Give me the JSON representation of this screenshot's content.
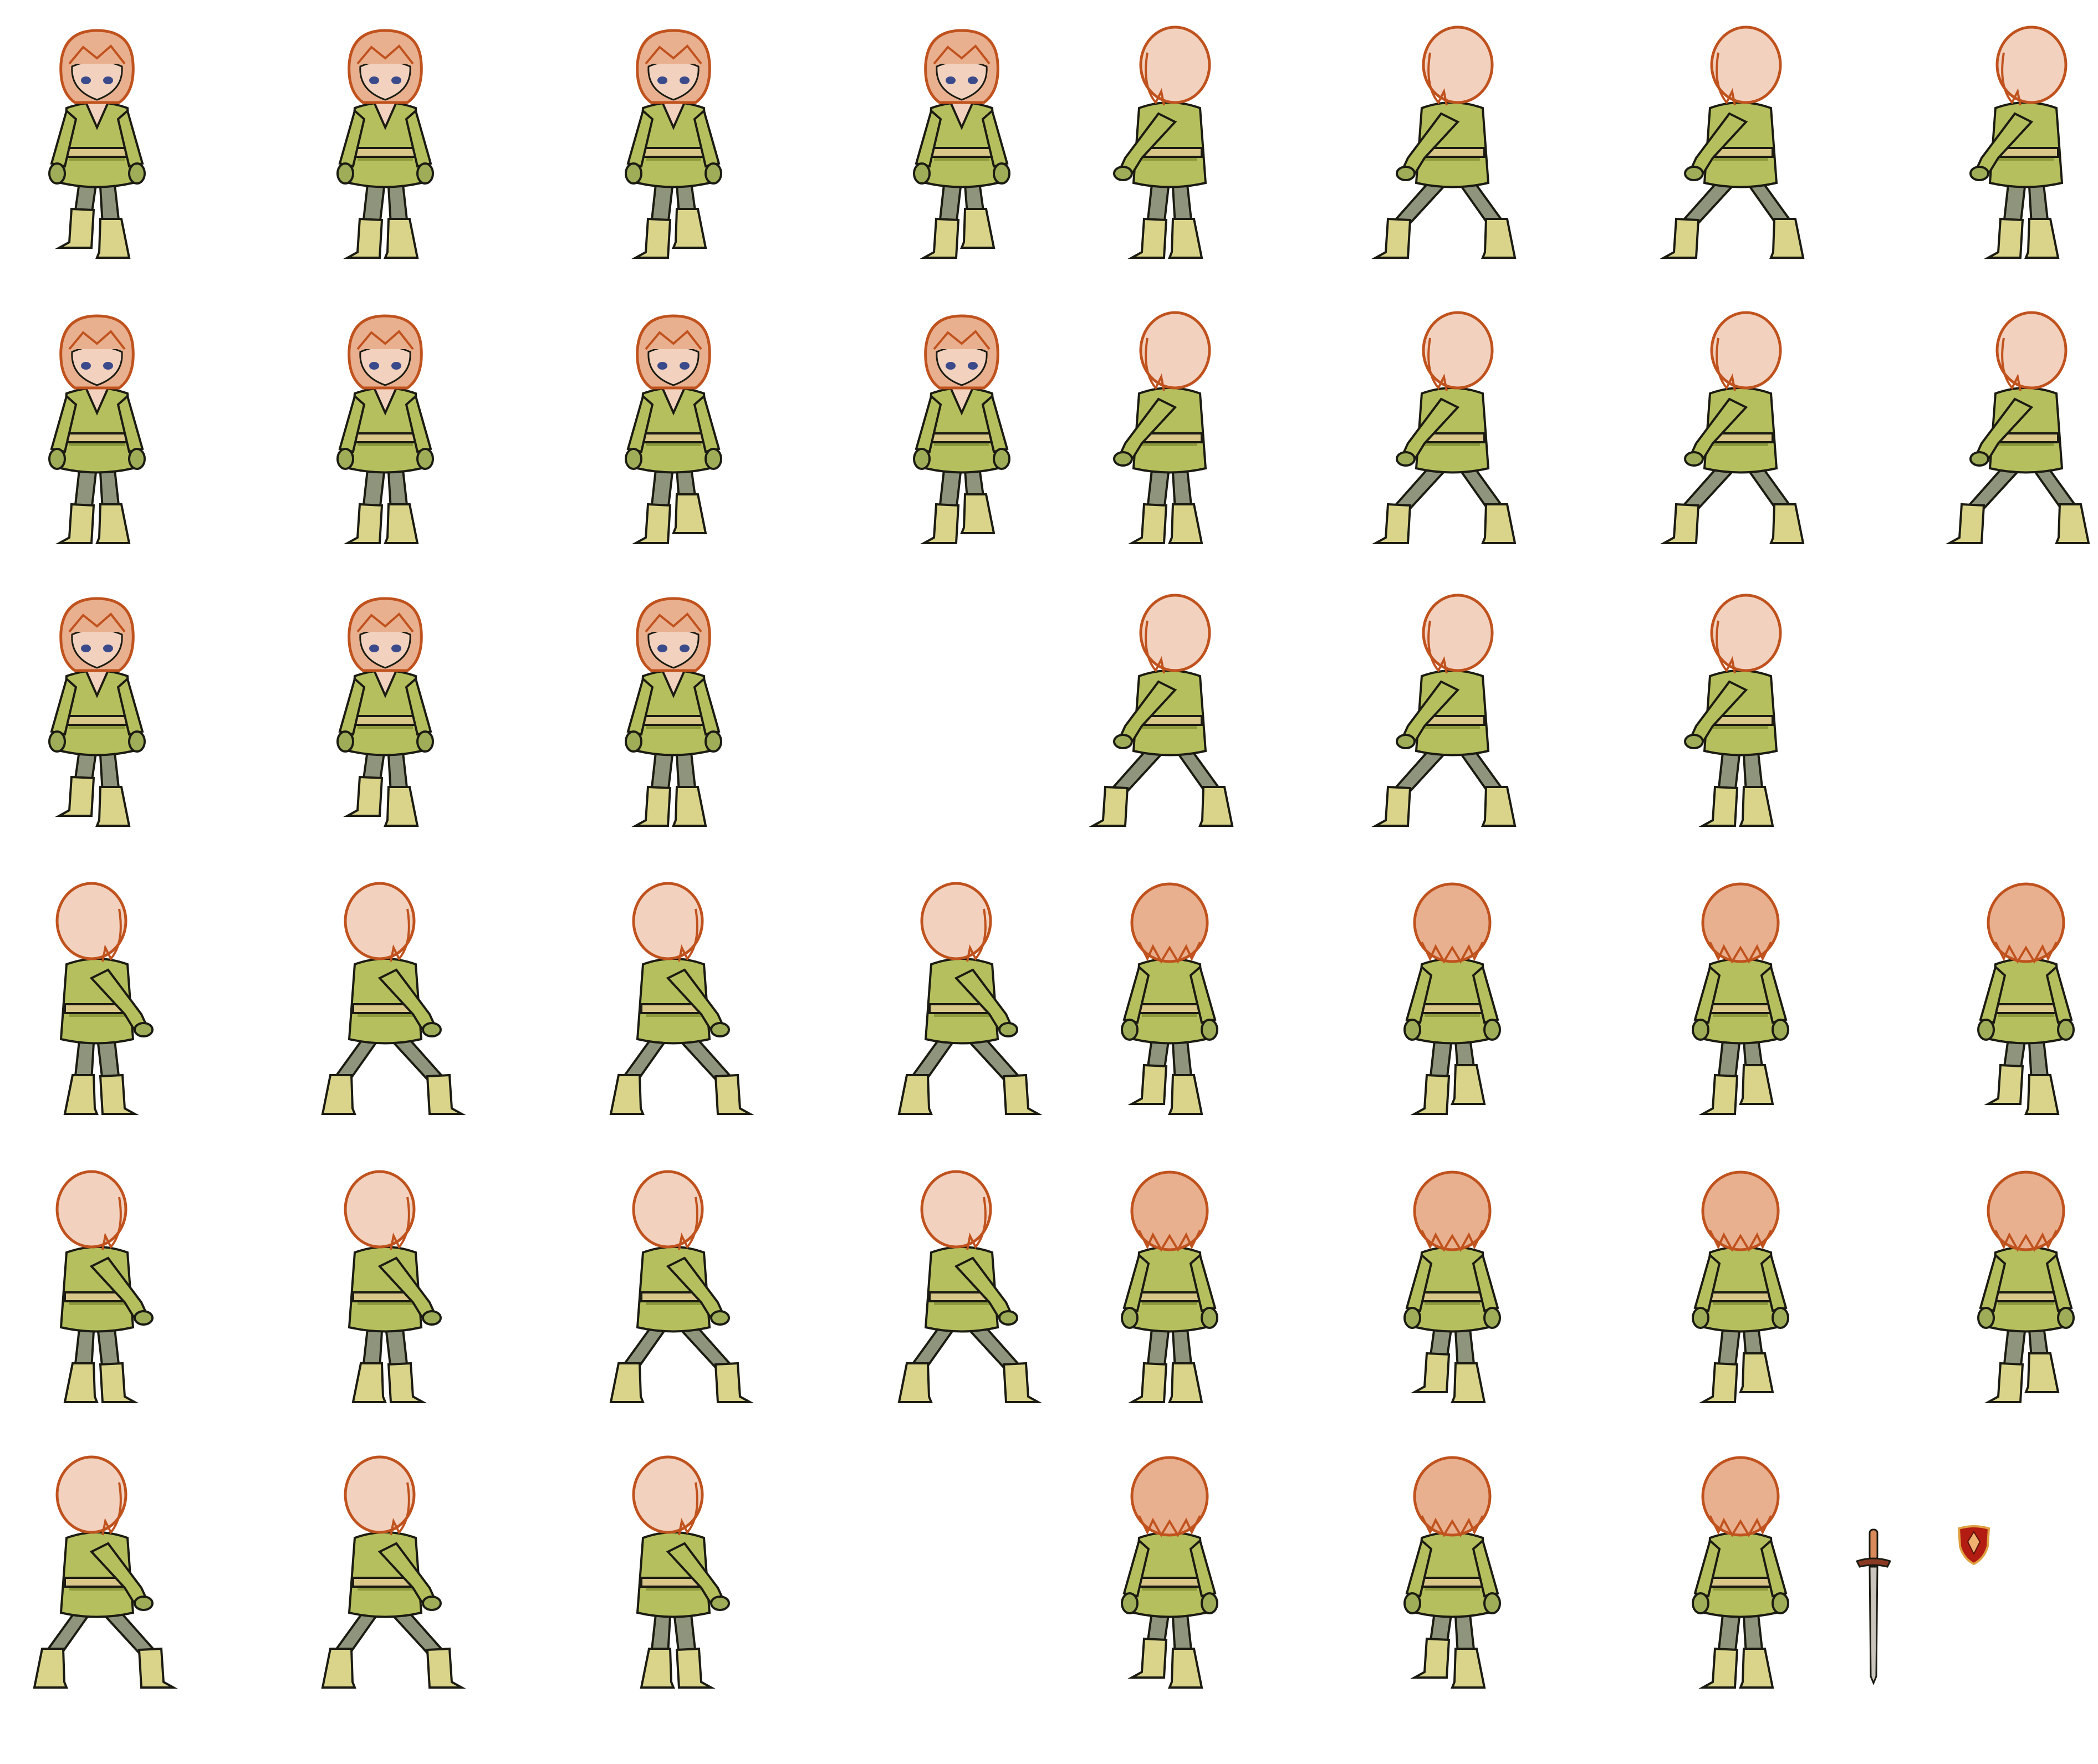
{
  "sprite_sheet": {
    "character": {
      "hair_color": "#e9b08f",
      "hair_outline": "#c0521e",
      "skin_color": "#f2d2bf",
      "tunic_color": "#b5bf5e",
      "tunic_dark": "#8e9a3c",
      "belt_color": "#d9c78a",
      "pants_color": "#8e957c",
      "boots_color": "#d9d48a",
      "gloves_color": "#9fad58",
      "eye_color": "#3a4a8a",
      "outline_color": "#1b1b12"
    },
    "frames": [
      {
        "row": 0,
        "col": 0,
        "pose": "front",
        "step": "left"
      },
      {
        "row": 0,
        "col": 1,
        "pose": "front",
        "step": "neutral"
      },
      {
        "row": 0,
        "col": 2,
        "pose": "front",
        "step": "right"
      },
      {
        "row": 0,
        "col": 3,
        "pose": "front",
        "step": "right"
      },
      {
        "row": 0,
        "col": 4,
        "pose": "side-left",
        "step": "neutral"
      },
      {
        "row": 0,
        "col": 5,
        "pose": "side-left",
        "step": "stride"
      },
      {
        "row": 0,
        "col": 6,
        "pose": "side-left",
        "step": "stride"
      },
      {
        "row": 0,
        "col": 7,
        "pose": "side-left",
        "step": "neutral"
      },
      {
        "row": 1,
        "col": 0,
        "pose": "front",
        "step": "neutral"
      },
      {
        "row": 1,
        "col": 1,
        "pose": "front",
        "step": "neutral"
      },
      {
        "row": 1,
        "col": 2,
        "pose": "front",
        "step": "right"
      },
      {
        "row": 1,
        "col": 3,
        "pose": "front",
        "step": "right"
      },
      {
        "row": 1,
        "col": 4,
        "pose": "side-left",
        "step": "neutral"
      },
      {
        "row": 1,
        "col": 5,
        "pose": "side-left",
        "step": "stride"
      },
      {
        "row": 1,
        "col": 6,
        "pose": "side-left",
        "step": "stride"
      },
      {
        "row": 1,
        "col": 7,
        "pose": "side-left",
        "step": "stride"
      },
      {
        "row": 2,
        "col": 0,
        "pose": "front",
        "step": "left"
      },
      {
        "row": 2,
        "col": 1,
        "pose": "front",
        "step": "left"
      },
      {
        "row": 2,
        "col": 2,
        "pose": "front",
        "step": "neutral"
      },
      {
        "row": 2,
        "col": 4,
        "pose": "side-left",
        "step": "stride"
      },
      {
        "row": 2,
        "col": 5,
        "pose": "side-left",
        "step": "stride"
      },
      {
        "row": 2,
        "col": 6,
        "pose": "side-left",
        "step": "neutral"
      },
      {
        "row": 3,
        "col": 0,
        "pose": "side-right",
        "step": "neutral"
      },
      {
        "row": 3,
        "col": 1,
        "pose": "side-right",
        "step": "stride"
      },
      {
        "row": 3,
        "col": 2,
        "pose": "side-right",
        "step": "stride"
      },
      {
        "row": 3,
        "col": 3,
        "pose": "side-right",
        "step": "stride"
      },
      {
        "row": 3,
        "col": 4,
        "pose": "back",
        "step": "left"
      },
      {
        "row": 3,
        "col": 5,
        "pose": "back",
        "step": "right"
      },
      {
        "row": 3,
        "col": 6,
        "pose": "back",
        "step": "right"
      },
      {
        "row": 3,
        "col": 7,
        "pose": "back",
        "step": "left"
      },
      {
        "row": 4,
        "col": 0,
        "pose": "side-right",
        "step": "neutral"
      },
      {
        "row": 4,
        "col": 1,
        "pose": "side-right",
        "step": "neutral"
      },
      {
        "row": 4,
        "col": 2,
        "pose": "side-right",
        "step": "stride"
      },
      {
        "row": 4,
        "col": 3,
        "pose": "side-right",
        "step": "stride"
      },
      {
        "row": 4,
        "col": 4,
        "pose": "back",
        "step": "neutral"
      },
      {
        "row": 4,
        "col": 5,
        "pose": "back",
        "step": "left"
      },
      {
        "row": 4,
        "col": 6,
        "pose": "back",
        "step": "right"
      },
      {
        "row": 4,
        "col": 7,
        "pose": "back",
        "step": "right"
      },
      {
        "row": 5,
        "col": 0,
        "pose": "side-right",
        "step": "stride"
      },
      {
        "row": 5,
        "col": 1,
        "pose": "side-right",
        "step": "stride"
      },
      {
        "row": 5,
        "col": 2,
        "pose": "side-right",
        "step": "neutral"
      },
      {
        "row": 5,
        "col": 4,
        "pose": "back",
        "step": "left"
      },
      {
        "row": 5,
        "col": 5,
        "pose": "back",
        "step": "left"
      },
      {
        "row": 5,
        "col": 6,
        "pose": "back",
        "step": "neutral"
      }
    ],
    "items": [
      {
        "name": "sword",
        "icon": "sword-icon",
        "blade_color": "#c9c4bc",
        "hilt_color": "#8a3a22",
        "grip_color": "#d88a5a"
      },
      {
        "name": "shield",
        "icon": "shield-icon",
        "face_color": "#b21c12",
        "rim_color": "#e0a040",
        "emblem_color": "#f0b070"
      }
    ]
  }
}
